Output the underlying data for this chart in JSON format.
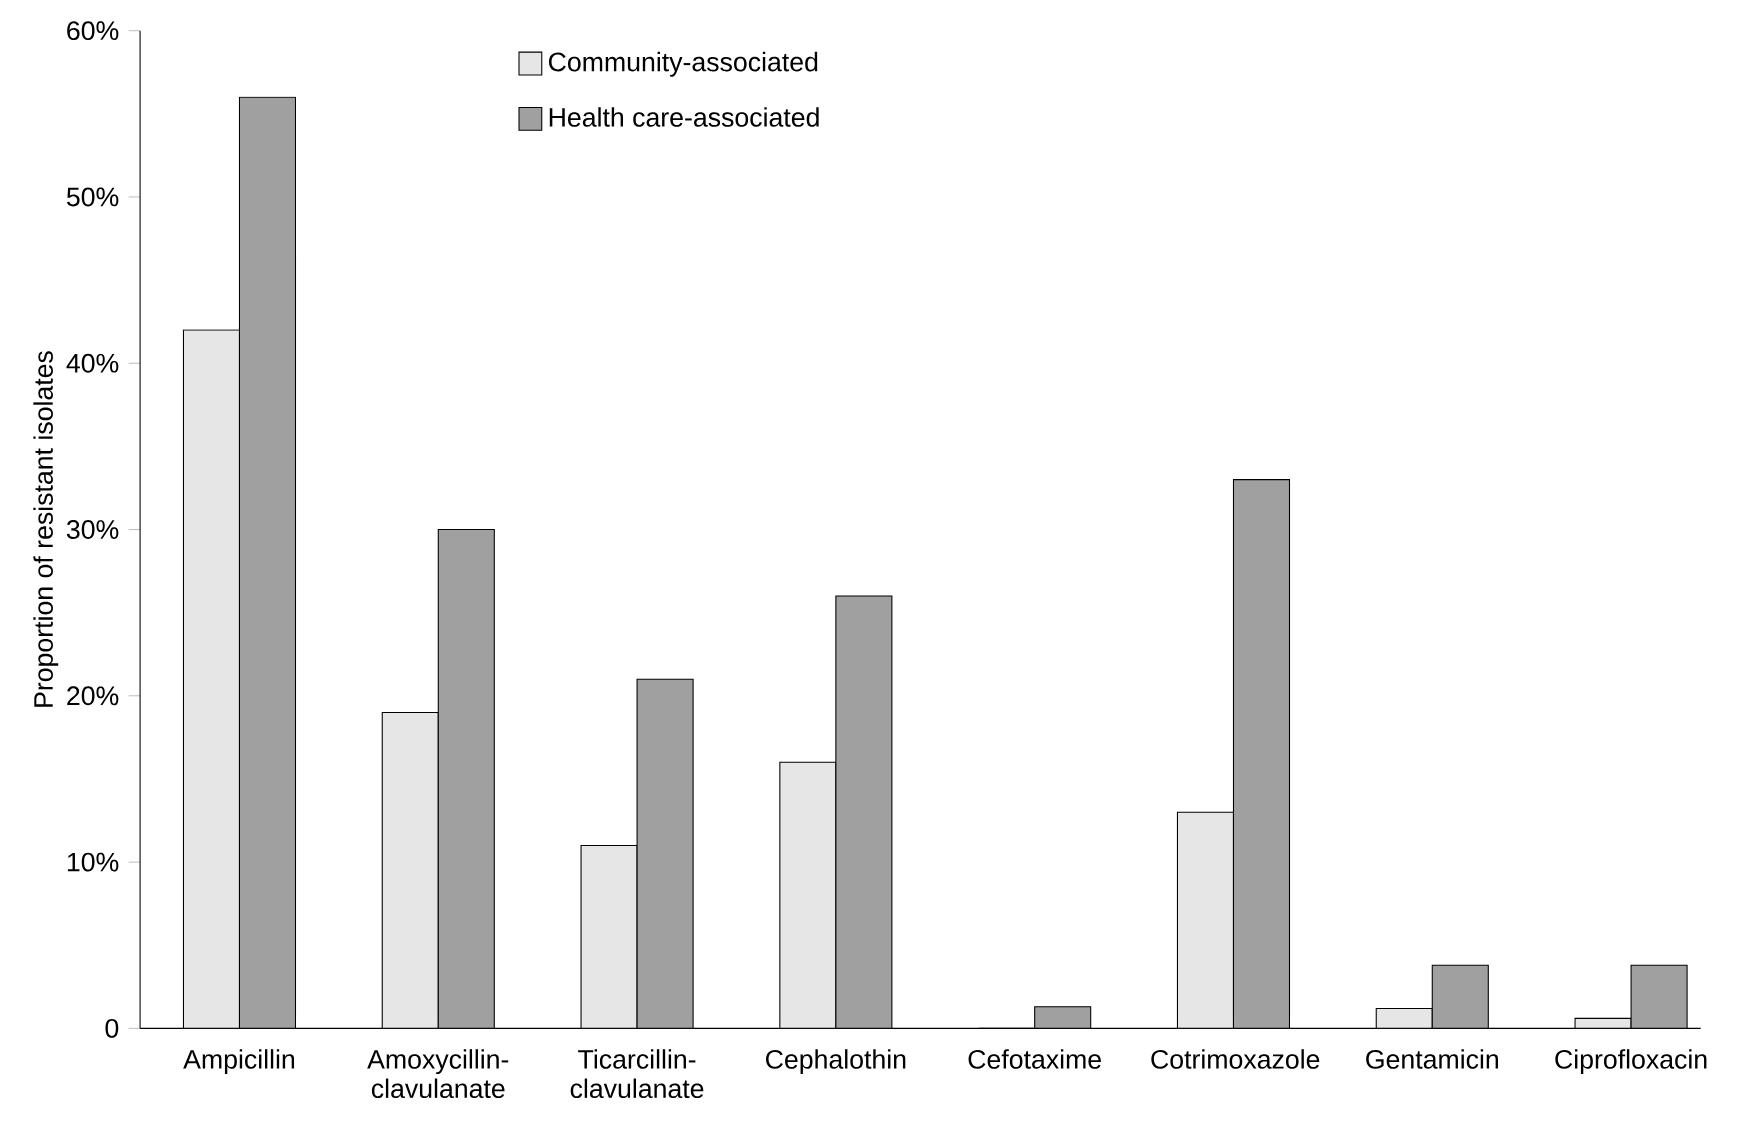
{
  "chart_data": {
    "type": "bar",
    "ylabel": "Proportion of resistant isolates",
    "categories": [
      "Ampicillin",
      "Amoxycillin-clavulanate",
      "Ticarcillin-clavulanate",
      "Cephalothin",
      "Cefotaxime",
      "Cotrimoxazole",
      "Gentamicin",
      "Ciprofloxacin"
    ],
    "series": [
      {
        "name": "Community-associated",
        "color": "#e6e6e6",
        "values": [
          42,
          19,
          11,
          16,
          0,
          13,
          1.2,
          0.6
        ]
      },
      {
        "name": "Health care-associated",
        "color": "#a0a0a0",
        "values": [
          56,
          30,
          21,
          26,
          1.3,
          33,
          3.8,
          3.8
        ]
      }
    ],
    "ylim": [
      0,
      60
    ],
    "yticks": [
      0,
      {
        "value": 10,
        "label": "10%"
      },
      {
        "value": 20,
        "label": "20%"
      },
      {
        "value": 30,
        "label": "30%"
      },
      {
        "value": 40,
        "label": "40%"
      },
      {
        "value": 50,
        "label": "50%"
      },
      {
        "value": 60,
        "label": "60%"
      }
    ],
    "grid": false,
    "legend": "top"
  }
}
